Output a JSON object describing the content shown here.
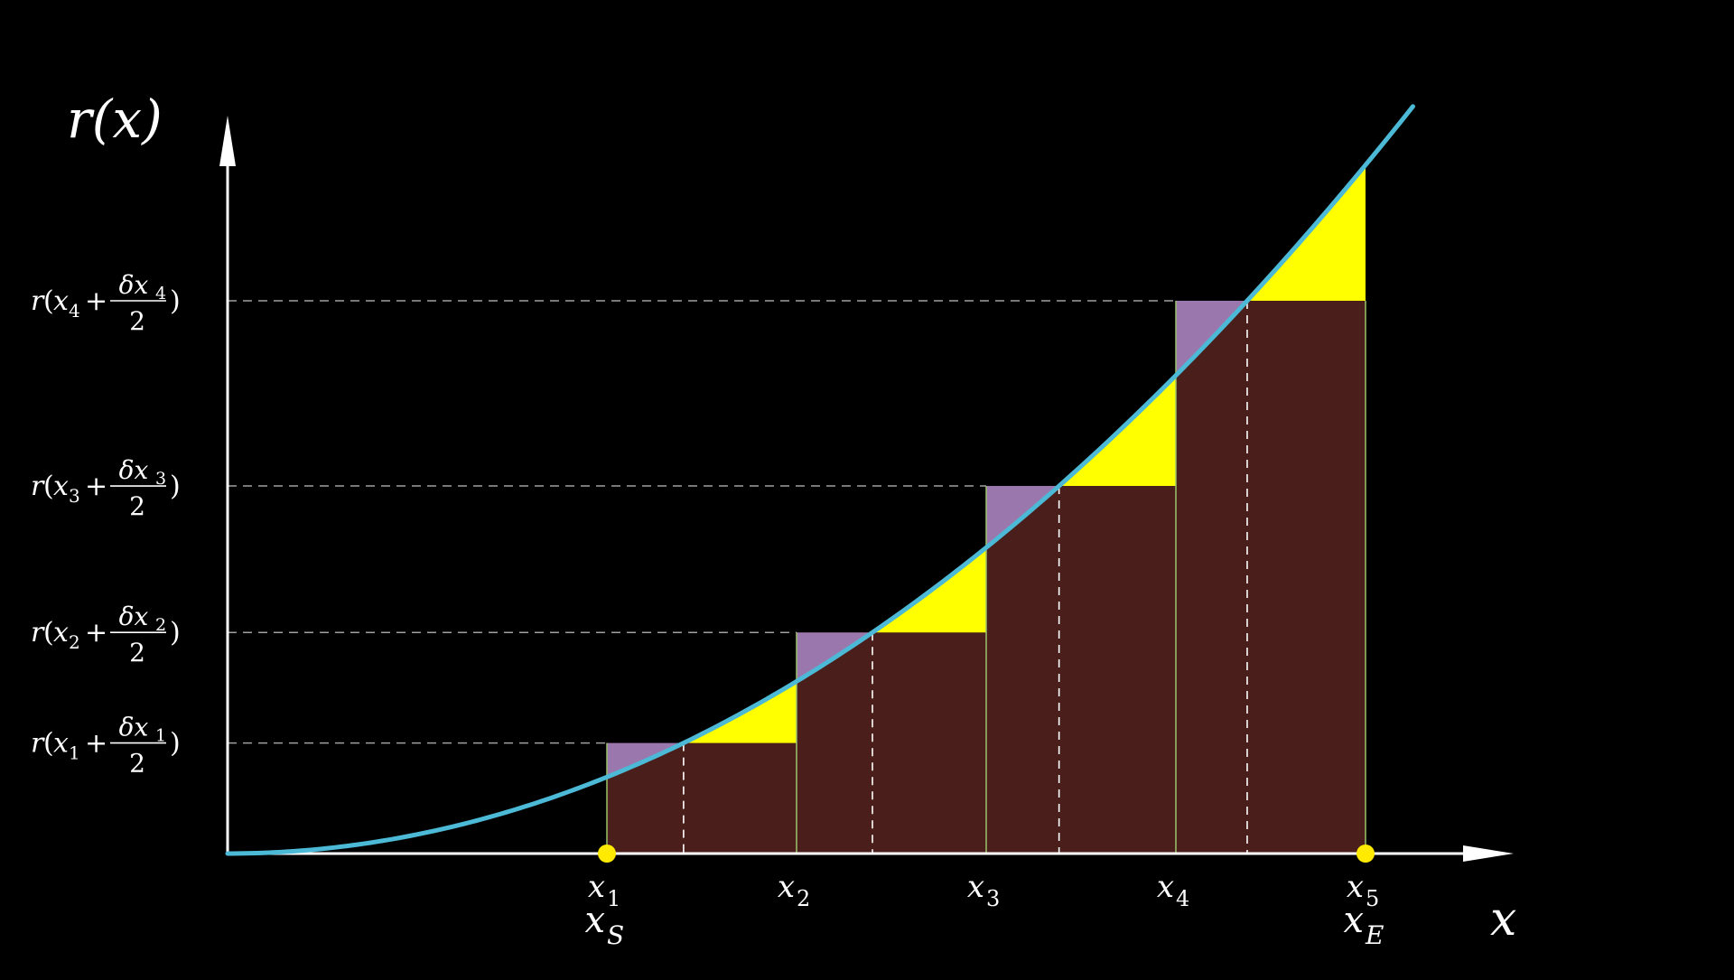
{
  "axes": {
    "y_label": "r(x)",
    "x_label": "x",
    "x_range": [
      0,
      6.5
    ],
    "y_range": [
      0,
      1.28
    ],
    "y_guides": [
      {
        "y": 0.2,
        "x_index": 1
      },
      {
        "y": 0.4,
        "x_index": 2
      },
      {
        "y": 0.665,
        "x_index": 3
      },
      {
        "y": 1.0,
        "x_index": 4
      }
    ],
    "x_ticks": [
      {
        "x": 2,
        "index": 1,
        "sub": "S"
      },
      {
        "x": 3,
        "index": 2,
        "sub": ""
      },
      {
        "x": 4,
        "index": 3,
        "sub": ""
      },
      {
        "x": 5,
        "index": 4,
        "sub": ""
      },
      {
        "x": 6,
        "index": 5,
        "sub": "E"
      }
    ],
    "y_label_template": {
      "r": "r",
      "open": "(",
      "plus": "+",
      "delta": "δ",
      "var": "x",
      "two": "2",
      "close": ")"
    }
  },
  "curve": {
    "formula": "r(x) = 0.0346·x²",
    "coefficient": 0.0346,
    "x_start": 0,
    "x_end": 6.25
  },
  "rectangles": [
    {
      "x_left": 2,
      "x_right": 3,
      "height": 0.2
    },
    {
      "x_left": 3,
      "x_right": 4,
      "height": 0.4
    },
    {
      "x_left": 4,
      "x_right": 5,
      "height": 0.665
    },
    {
      "x_left": 5,
      "x_right": 6,
      "height": 1.0
    }
  ],
  "endpoints": [
    2,
    6
  ],
  "colors": {
    "background": "#000000",
    "axis": "#ffffff",
    "curve": "#4cb9d6",
    "rect_fill": "#4a1f1b",
    "rect_edge": "#9bc46a",
    "over_fill": "#9a77ad",
    "under_fill": "#ffff00",
    "guide": "#a0a0a0",
    "endpoint": "#ffea00"
  }
}
